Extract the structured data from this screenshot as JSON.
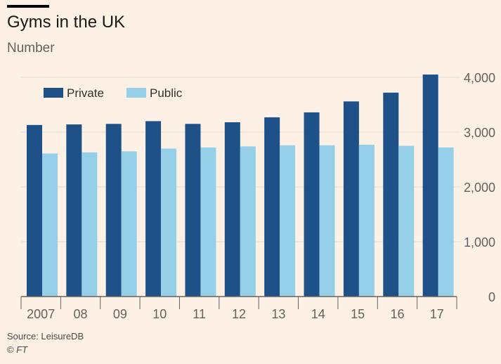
{
  "header": {
    "title": "Gyms in the UK",
    "subtitle": "Number"
  },
  "footer": {
    "source": "Source: LeisureDB",
    "copyright_symbol": "©",
    "copyright_brand": "FT"
  },
  "colors": {
    "background": "#fdf1e6",
    "private": "#1f5189",
    "public": "#96d0e8",
    "gridline": "#e6d9ce",
    "axis": "#66605c",
    "text": "#66605c"
  },
  "chart_data": {
    "type": "bar",
    "title": "Gyms in the UK",
    "subtitle": "Number",
    "xlabel": "",
    "ylabel": "Number",
    "categories": [
      "2007",
      "08",
      "09",
      "10",
      "11",
      "12",
      "13",
      "14",
      "15",
      "16",
      "17"
    ],
    "series": [
      {
        "name": "Private",
        "values": [
          3130,
          3140,
          3150,
          3200,
          3150,
          3180,
          3270,
          3360,
          3560,
          3720,
          4050
        ]
      },
      {
        "name": "Public",
        "values": [
          2610,
          2630,
          2650,
          2700,
          2720,
          2740,
          2760,
          2760,
          2770,
          2750,
          2720
        ]
      }
    ],
    "ylim": [
      0,
      4000
    ],
    "yticks": [
      0,
      1000,
      2000,
      3000,
      4000
    ],
    "ytick_labels": [
      "0",
      "1,000",
      "2,000",
      "3,000",
      "4,000"
    ],
    "grid": true,
    "legend": "top-left"
  }
}
